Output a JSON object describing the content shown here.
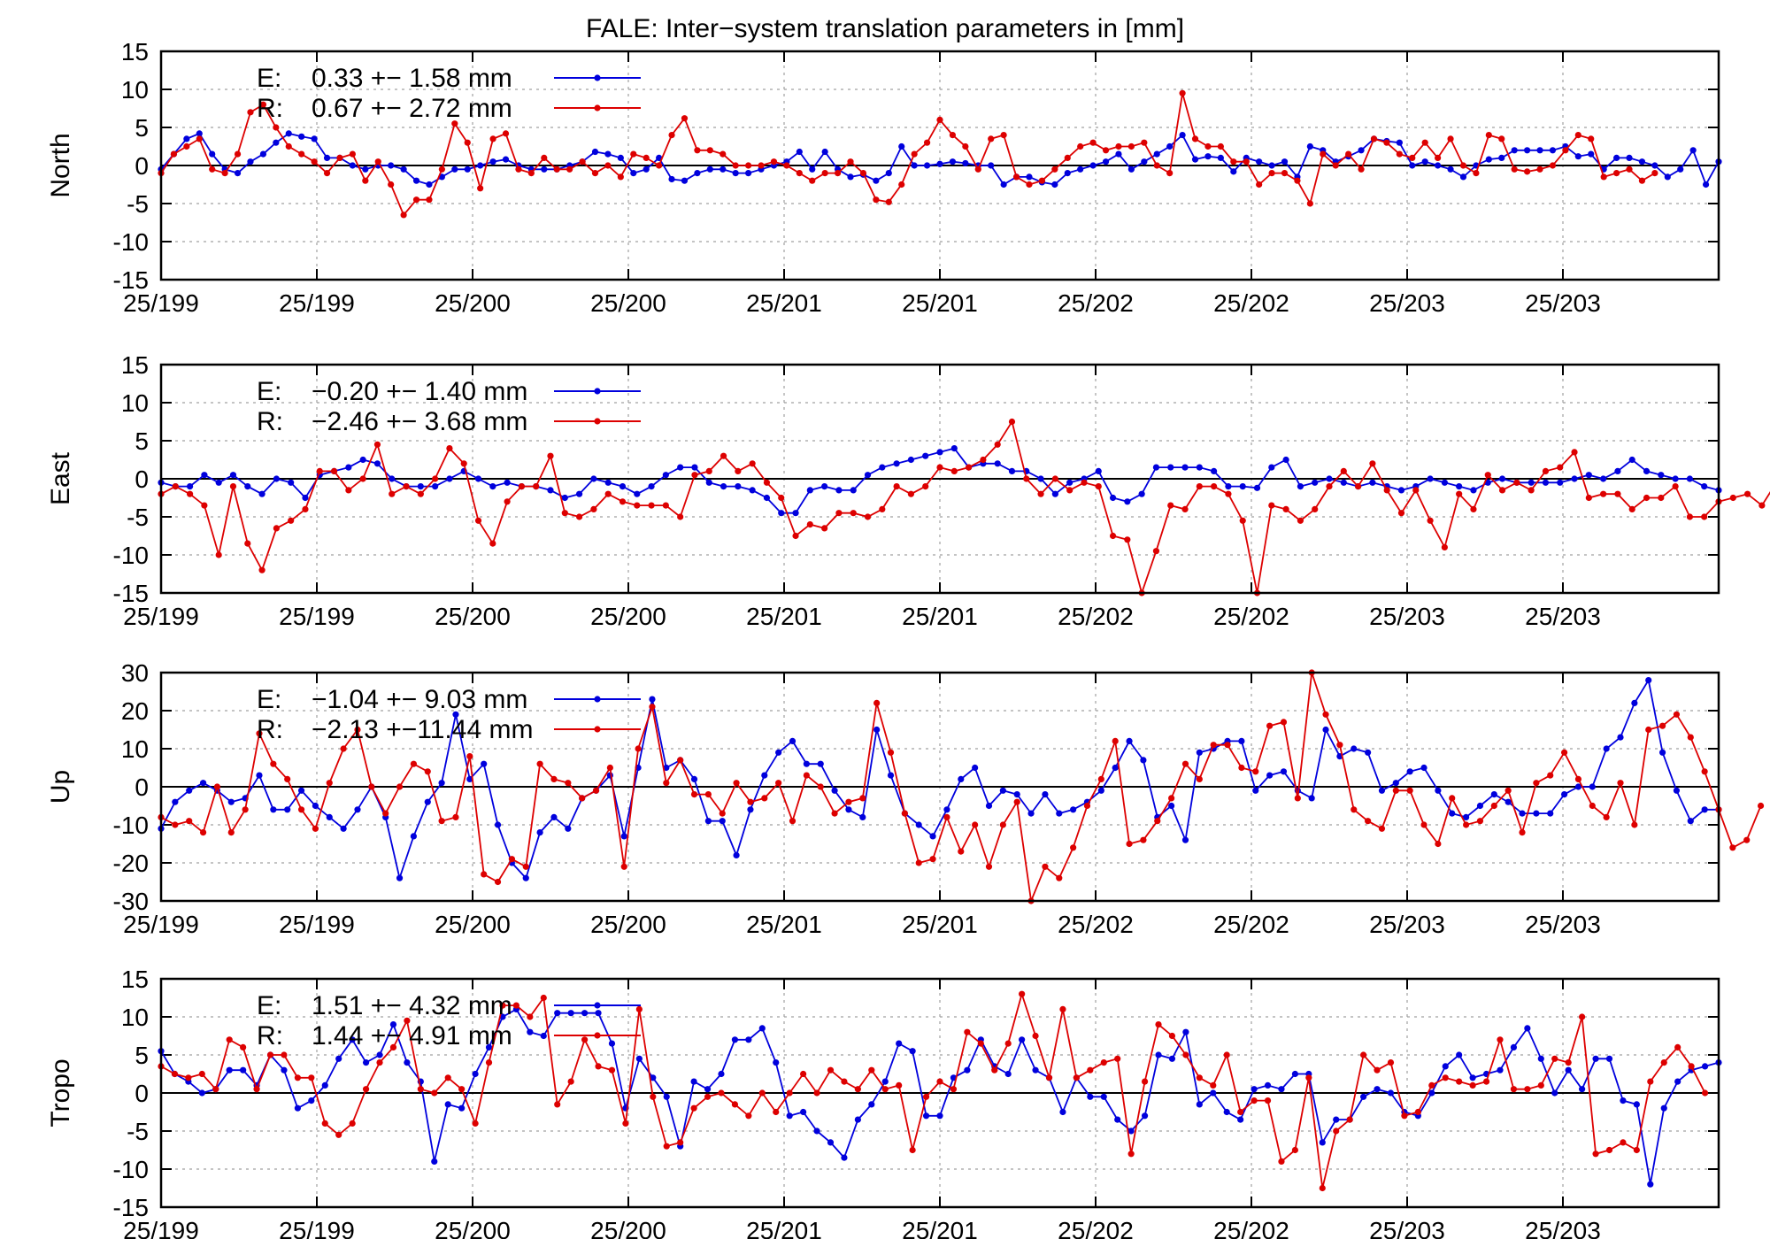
{
  "title": "FALE: Inter−system translation parameters in [mm]",
  "colors": {
    "E": "#0000dd",
    "R": "#dd0000",
    "grid": "#a0a0a0",
    "axis": "#000000"
  },
  "x_tick_labels": [
    "25/199",
    "25/199",
    "25/200",
    "25/200",
    "25/201",
    "25/201",
    "25/202",
    "25/202",
    "25/203",
    "25/203"
  ],
  "chart_data": [
    {
      "type": "line",
      "ylabel": "North",
      "ylim": [
        -15,
        15
      ],
      "yticks": [
        15,
        10,
        5,
        0,
        -5,
        -10,
        -15
      ],
      "grid": true,
      "legend_position": "top-left",
      "legend": [
        {
          "label": "E:",
          "stats": "0.33 +− 1.58 mm"
        },
        {
          "label": "R:",
          "stats": "0.67 +− 2.72 mm"
        }
      ],
      "series": [
        {
          "name": "E",
          "values": [
            -0.5,
            1.5,
            3.5,
            4.2,
            1.5,
            -0.5,
            -1,
            0.5,
            1.5,
            3,
            4.2,
            3.8,
            3.5,
            1,
            1,
            0,
            -0.5,
            0,
            0,
            -0.5,
            -2,
            -2.5,
            -1.5,
            -0.5,
            -0.5,
            0,
            0.5,
            0.8,
            0,
            -0.5,
            -0.5,
            -0.5,
            0,
            0.5,
            1.8,
            1.5,
            1,
            -1,
            -0.5,
            1,
            -1.8,
            -2,
            -1,
            -0.5,
            -0.5,
            -1,
            -1,
            -0.5,
            0,
            0.5,
            1.8,
            -0.5,
            1.8,
            -0.5,
            -1.5,
            -1.2,
            -2,
            -1,
            2.5,
            0,
            0,
            0.2,
            0.5,
            0.3,
            0,
            0,
            -2.5,
            -1.5,
            -1.5,
            -2.2,
            -2.5,
            -1,
            -0.5,
            0,
            0.5,
            1.5,
            -0.5,
            0.5,
            1.5,
            2.5,
            4,
            0.8,
            1.2,
            1,
            -0.8,
            1,
            0.5,
            0,
            0.5,
            -1.5,
            2.5,
            2,
            0.5,
            1.2,
            2,
            3.5,
            3.2,
            3,
            0,
            0.5,
            0,
            -0.5,
            -1.5,
            0,
            0.8,
            1,
            2,
            2,
            2,
            2,
            2.5,
            1.2,
            1.5,
            -0.5,
            1,
            1,
            0.5,
            0,
            -1.5,
            -0.5,
            2,
            -2.5,
            0.5
          ]
        },
        {
          "name": "R",
          "values": [
            -1,
            1.5,
            2.5,
            3.5,
            -0.5,
            -1,
            1.5,
            7,
            8,
            5,
            2.5,
            1.5,
            0.5,
            -1,
            1,
            1.5,
            -2,
            0.5,
            -2.5,
            -6.5,
            -4.5,
            -4.5,
            -0.5,
            5.5,
            3,
            -3,
            3.5,
            4.2,
            -0.5,
            -1,
            1,
            -0.5,
            -0.5,
            0.5,
            -1,
            0,
            -1.5,
            1.5,
            1,
            0,
            4,
            6.2,
            2,
            2,
            1.5,
            0,
            0,
            0,
            0.5,
            0,
            -1,
            -2,
            -1,
            -1,
            0.5,
            -1,
            -4.5,
            -4.8,
            -2.5,
            1.5,
            3,
            6,
            4,
            2.5,
            -0.5,
            3.5,
            4,
            -1.5,
            -2.5,
            -2,
            -0.5,
            1,
            2.5,
            3,
            2,
            2.5,
            2.5,
            3,
            0,
            -1,
            9.5,
            3.5,
            2.5,
            2.5,
            0.5,
            0.5,
            -2.5,
            -1,
            -1,
            -2,
            -5,
            1.5,
            0,
            1.5,
            -0.5,
            3.5,
            3,
            1.5,
            1,
            3,
            1,
            3.5,
            0,
            -1,
            4,
            3.5,
            -0.5,
            -0.8,
            -0.5,
            0,
            2,
            4,
            3.5,
            -1.5,
            -1,
            -0.5,
            -2,
            -1
          ]
        }
      ]
    },
    {
      "type": "line",
      "ylabel": "East",
      "ylim": [
        -15,
        15
      ],
      "yticks": [
        15,
        10,
        5,
        0,
        -5,
        -10,
        -15
      ],
      "grid": true,
      "legend_position": "top-left",
      "legend": [
        {
          "label": "E:",
          "stats": "−0.20 +− 1.40 mm"
        },
        {
          "label": "R:",
          "stats": "−2.46 +− 3.68 mm"
        }
      ],
      "series": [
        {
          "name": "E",
          "values": [
            -0.5,
            -1,
            -1,
            0.5,
            -0.5,
            0.5,
            -1,
            -2,
            0,
            -0.5,
            -2.5,
            0.5,
            1,
            1.5,
            2.5,
            2,
            0,
            -1,
            -1,
            -1,
            0,
            1,
            0,
            -1,
            -0.5,
            -1,
            -1,
            -1.5,
            -2.5,
            -2,
            0,
            -0.5,
            -1,
            -2,
            -1,
            0.5,
            1.5,
            1.5,
            -0.5,
            -1,
            -1,
            -1.5,
            -2.5,
            -4.5,
            -4.5,
            -1.5,
            -1,
            -1.5,
            -1.5,
            0.5,
            1.5,
            2,
            2.5,
            3,
            3.5,
            4,
            1.5,
            2,
            2,
            1,
            1,
            0,
            -2,
            -0.5,
            0,
            1,
            -2.5,
            -3,
            -2,
            1.5,
            1.5,
            1.5,
            1.5,
            1,
            -1,
            -1,
            -1.2,
            1.5,
            2.5,
            -1,
            -0.5,
            0,
            -0.5,
            -1,
            -0.5,
            -1,
            -1.5,
            -1,
            0,
            -0.5,
            -1,
            -1.5,
            -0.5,
            0,
            -0.5,
            -0.5,
            -0.5,
            -0.5,
            0,
            0.5,
            0,
            1,
            2.5,
            1,
            0.5,
            0,
            0,
            -1,
            -1.5
          ]
        },
        {
          "name": "R",
          "values": [
            -2,
            -1,
            -2,
            -3.5,
            -10,
            -1,
            -8.5,
            -12,
            -6.5,
            -5.5,
            -4,
            1,
            1,
            -1.5,
            0,
            4.5,
            -2,
            -1,
            -2,
            0,
            4,
            2,
            -5.5,
            -8.5,
            -3,
            -1,
            -1,
            3,
            -4.5,
            -5,
            -4,
            -2,
            -3,
            -3.5,
            -3.5,
            -3.5,
            -5,
            0.5,
            1,
            3,
            1,
            2,
            -0.5,
            -2.5,
            -7.5,
            -6,
            -6.5,
            -4.5,
            -4.5,
            -5,
            -4,
            -1,
            -2,
            -1,
            1.5,
            1,
            1.5,
            2.5,
            4.5,
            7.5,
            0,
            -2,
            0,
            -1.5,
            -0.5,
            -1,
            -7.5,
            -8,
            -15,
            -9.5,
            -3.5,
            -4,
            -1,
            -1,
            -2,
            -5.5,
            -15,
            -3.5,
            -4,
            -5.5,
            -4,
            -1,
            1,
            -1,
            2,
            -1.5,
            -4.5,
            -1.5,
            -5.5,
            -9,
            -2,
            -4,
            0.5,
            -1.5,
            -0.5,
            -1.5,
            1,
            1.5,
            3.5,
            -2.5,
            -2,
            -2,
            -4,
            -2.5,
            -2.5,
            -1,
            -5,
            -5,
            -3,
            -2.5,
            -2,
            -3.5,
            -0.5,
            -3.5,
            0.5,
            -1.5
          ]
        }
      ]
    },
    {
      "type": "line",
      "ylabel": "Up",
      "ylim": [
        -30,
        30
      ],
      "yticks": [
        30,
        20,
        10,
        0,
        -10,
        -20,
        -30
      ],
      "grid": true,
      "legend_position": "top-left",
      "legend": [
        {
          "label": "E:",
          "stats": "−1.04 +− 9.03 mm"
        },
        {
          "label": "R:",
          "stats": "−2.13 +−11.44 mm"
        }
      ],
      "series": [
        {
          "name": "E",
          "values": [
            -11,
            -4,
            -1,
            1,
            -1,
            -4,
            -3,
            3,
            -6,
            -6,
            -1,
            -5,
            -8,
            -11,
            -6,
            0,
            -8,
            -24,
            -13,
            -4,
            1,
            19,
            2,
            6,
            -10,
            -20,
            -24,
            -12,
            -8,
            -11,
            -3,
            -1,
            3,
            -13,
            5,
            23,
            5,
            7,
            2,
            -9,
            -9,
            -18,
            -6,
            3,
            9,
            12,
            6,
            6,
            -1,
            -6,
            -8,
            15,
            3,
            -7,
            -10,
            -13,
            -6,
            2,
            5,
            -5,
            -1,
            -2,
            -7,
            -2,
            -7,
            -6,
            -4,
            -1,
            5,
            12,
            7,
            -8,
            -5,
            -14,
            9,
            10,
            12,
            12,
            -1,
            3,
            4,
            -1,
            -3,
            15,
            8,
            10,
            9,
            -1,
            1,
            4,
            5,
            -1,
            -7,
            -8,
            -5,
            -2,
            -4,
            -7,
            -7,
            -7,
            -2,
            0,
            0,
            10,
            13,
            22,
            28,
            9,
            -1,
            -9,
            -6,
            -6
          ]
        },
        {
          "name": "R",
          "values": [
            -8,
            -10,
            -9,
            -12,
            0,
            -12,
            -6,
            14,
            6,
            2,
            -6,
            -11,
            1,
            10,
            15,
            0,
            -7,
            0,
            6,
            4,
            -9,
            -8,
            8,
            -23,
            -25,
            -19,
            -21,
            6,
            2,
            1,
            -3,
            -1,
            5,
            -21,
            10,
            21,
            1,
            7,
            -2,
            -2,
            -7,
            1,
            -4,
            -3,
            1,
            -9,
            3,
            0,
            -7,
            -4,
            -3,
            22,
            9,
            -7,
            -20,
            -19,
            -8,
            -17,
            -10,
            -21,
            -10,
            -4,
            -30,
            -21,
            -24,
            -16,
            -5,
            2,
            12,
            -15,
            -14,
            -9,
            -3,
            6,
            2,
            11,
            11,
            5,
            4,
            16,
            17,
            -3,
            31,
            19,
            11,
            -6,
            -9,
            -11,
            -1,
            -1,
            -10,
            -15,
            -3,
            -10,
            -9,
            -5,
            -1,
            -12,
            1,
            3,
            9,
            2,
            -5,
            -8,
            1,
            -10,
            15,
            16,
            19,
            13,
            4,
            -6,
            -16,
            -14,
            -5
          ]
        }
      ]
    },
    {
      "type": "line",
      "ylabel": "Tropo",
      "ylim": [
        -15,
        15
      ],
      "yticks": [
        15,
        10,
        5,
        0,
        -5,
        -10,
        -15
      ],
      "grid": true,
      "legend_position": "top-left",
      "legend": [
        {
          "label": "E:",
          "stats": "1.51 +− 4.32 mm"
        },
        {
          "label": "R:",
          "stats": "1.44 +− 4.91 mm"
        }
      ],
      "series": [
        {
          "name": "E",
          "values": [
            5.5,
            2.5,
            1.5,
            0,
            0.5,
            3,
            3,
            1,
            5,
            3,
            -2,
            -1,
            1,
            4.5,
            7,
            4,
            5,
            9,
            4,
            1.5,
            -9,
            -1.5,
            -2,
            2.5,
            6,
            10,
            11,
            8,
            7.5,
            10.5,
            10.5,
            10.5,
            10.5,
            6.5,
            -2,
            4.5,
            2,
            -0.5,
            -7,
            1.5,
            0.5,
            2.5,
            7,
            7,
            8.5,
            4,
            -3,
            -2.5,
            -5,
            -6.5,
            -8.5,
            -3.5,
            -1.5,
            1.5,
            6.5,
            5.5,
            -3,
            -3,
            2,
            3,
            7,
            3.5,
            2.5,
            7,
            3,
            2,
            -2.5,
            2,
            -0.5,
            -0.5,
            -3.5,
            -5,
            -3,
            5,
            4.5,
            8,
            -1.5,
            0,
            -2.5,
            -3.5,
            0.5,
            1,
            0.5,
            2.5,
            2.5,
            -6.5,
            -3.5,
            -3.5,
            -0.5,
            0.5,
            0,
            -2.5,
            -3,
            0,
            3.5,
            5,
            2,
            2.5,
            3,
            6,
            8.5,
            4.5,
            0,
            3,
            0.5,
            4.5,
            4.5,
            -1,
            -1.5,
            -12,
            -2,
            1.5,
            3,
            3.5,
            4
          ]
        },
        {
          "name": "R",
          "values": [
            3.5,
            2.5,
            2,
            2.5,
            0.5,
            7,
            6,
            0.5,
            5,
            5,
            2,
            2,
            -4,
            -5.5,
            -4,
            0.5,
            4,
            6,
            9.5,
            0.5,
            0,
            2,
            0.5,
            -4,
            4,
            11.5,
            11.5,
            10,
            12.5,
            -1.5,
            1.5,
            7,
            3.5,
            3,
            -4,
            11,
            -0.5,
            -7,
            -6.5,
            -2,
            -0.5,
            0,
            -1.5,
            -3,
            0,
            -2.5,
            0,
            2.5,
            0,
            3,
            1.5,
            0.5,
            3,
            0.5,
            1,
            -7.5,
            -0.5,
            1.5,
            0.5,
            8,
            6.5,
            3,
            6.5,
            13,
            7.5,
            2,
            11,
            2,
            3,
            4,
            4.5,
            -8,
            1.5,
            9,
            7.5,
            5,
            2,
            1,
            5,
            -2.5,
            -1,
            -1,
            -9,
            -7.5,
            2,
            -12.5,
            -5,
            -3.5,
            5,
            3,
            4,
            -3,
            -2.5,
            1,
            2,
            1.5,
            1,
            1.5,
            7,
            0.5,
            0.5,
            1,
            4.5,
            4,
            10,
            -8,
            -7.5,
            -6.5,
            -7.5,
            1.5,
            4,
            6,
            3.5,
            0
          ]
        }
      ]
    }
  ]
}
